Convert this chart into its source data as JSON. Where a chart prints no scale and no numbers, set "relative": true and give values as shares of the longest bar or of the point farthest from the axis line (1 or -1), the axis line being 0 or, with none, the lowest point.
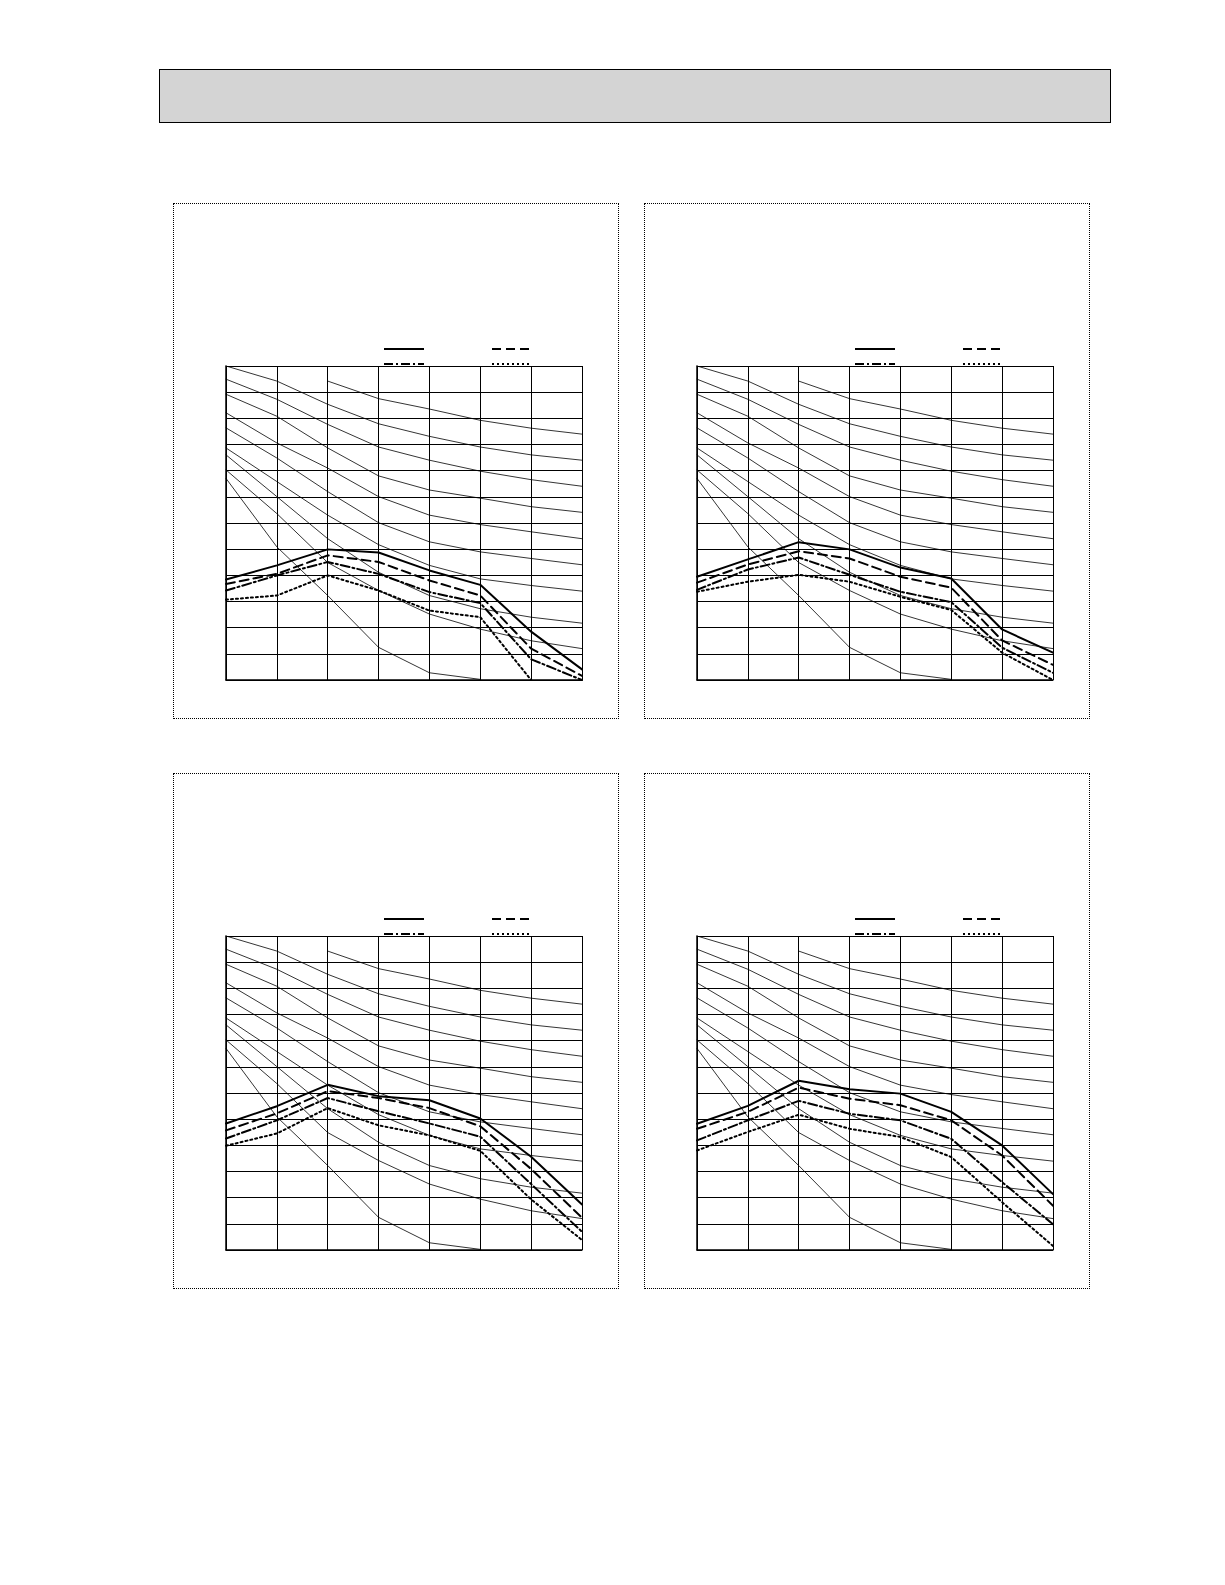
{
  "chart_data": [
    {
      "type": "line",
      "relative": true,
      "grid": true,
      "categories": [
        null,
        null,
        null,
        null,
        null,
        null,
        null,
        null
      ],
      "series": [
        {
          "color": "#000000",
          "line_style": "solid",
          "values": [
            0.32,
            0.365,
            0.416,
            0.406,
            0.349,
            0.303,
            0.154,
            0.034
          ]
        },
        {
          "color": "#000000",
          "line_style": "dashed",
          "values": [
            0.306,
            0.338,
            0.397,
            0.376,
            0.317,
            0.269,
            0.1,
            0.013
          ]
        },
        {
          "color": "#000000",
          "line_style": "dashdot",
          "values": [
            0.285,
            0.333,
            0.376,
            0.338,
            0.28,
            0.245,
            0.066,
            0
          ]
        },
        {
          "color": "#000000",
          "line_style": "dotted",
          "values": [
            0.256,
            0.269,
            0.333,
            0.285,
            0.221,
            0.2,
            0,
            null
          ]
        },
        {
          "color": "#000000",
          "values": [
            null,
            null,
            0.952,
            0.896,
            0.863,
            0.827,
            0.802,
            0.783
          ]
        },
        {
          "color": "#000000",
          "values": [
            1.0,
            0.952,
            0.878,
            0.816,
            0.776,
            0.742,
            0.717,
            0.7
          ]
        },
        {
          "color": "#000000",
          "values": [
            0.958,
            0.894,
            0.814,
            0.742,
            0.7,
            0.665,
            0.638,
            0.617
          ]
        },
        {
          "color": "#000000",
          "values": [
            0.91,
            0.84,
            0.739,
            0.65,
            0.605,
            0.579,
            0.552,
            0.534
          ]
        },
        {
          "color": "#000000",
          "values": [
            0.851,
            0.755,
            0.675,
            0.584,
            0.525,
            0.495,
            0.472,
            0.45
          ]
        },
        {
          "color": "#000000",
          "values": [
            0.803,
            0.707,
            0.6,
            0.501,
            0.44,
            0.408,
            0.387,
            0.367
          ]
        },
        {
          "color": "#000000",
          "values": [
            0.739,
            0.632,
            0.525,
            0.431,
            0.365,
            0.322,
            0.301,
            0.283
          ]
        },
        {
          "color": "#000000",
          "values": [
            0.717,
            0.584,
            0.45,
            0.343,
            0.269,
            0.227,
            0.2,
            0.181
          ]
        },
        {
          "color": "#000000",
          "values": [
            0.669,
            0.53,
            0.374,
            0.285,
            0.21,
            0.162,
            0.125,
            0.1
          ]
        },
        {
          "color": "#000000",
          "values": [
            0.642,
            0.424,
            0.269,
            0.104,
            0.023,
            0.002,
            null,
            null
          ]
        }
      ]
    },
    {
      "type": "line",
      "relative": true,
      "grid": true,
      "categories": [
        null,
        null,
        null,
        null,
        null,
        null,
        null,
        null
      ],
      "series": [
        {
          "color": "#000000",
          "line_style": "solid",
          "values": [
            0.329,
            0.384,
            0.439,
            0.416,
            0.358,
            0.323,
            0.161,
            0.087
          ]
        },
        {
          "color": "#000000",
          "line_style": "dashed",
          "values": [
            0.31,
            0.368,
            0.41,
            0.387,
            0.329,
            0.294,
            0.126,
            0.048
          ]
        },
        {
          "color": "#000000",
          "line_style": "dashdot",
          "values": [
            0.287,
            0.352,
            0.39,
            0.335,
            0.281,
            0.248,
            0.103,
            0.023
          ]
        },
        {
          "color": "#000000",
          "line_style": "dotted",
          "values": [
            0.281,
            0.313,
            0.335,
            0.313,
            0.265,
            0.223,
            0.087,
            0
          ]
        },
        {
          "color": "#000000",
          "values": [
            null,
            null,
            0.952,
            0.896,
            0.863,
            0.827,
            0.802,
            0.783
          ]
        },
        {
          "color": "#000000",
          "values": [
            1.0,
            0.952,
            0.878,
            0.816,
            0.776,
            0.742,
            0.717,
            0.7
          ]
        },
        {
          "color": "#000000",
          "values": [
            0.958,
            0.894,
            0.814,
            0.742,
            0.7,
            0.665,
            0.638,
            0.617
          ]
        },
        {
          "color": "#000000",
          "values": [
            0.91,
            0.84,
            0.739,
            0.65,
            0.605,
            0.579,
            0.552,
            0.534
          ]
        },
        {
          "color": "#000000",
          "values": [
            0.851,
            0.755,
            0.675,
            0.584,
            0.525,
            0.495,
            0.472,
            0.45
          ]
        },
        {
          "color": "#000000",
          "values": [
            0.803,
            0.707,
            0.6,
            0.501,
            0.44,
            0.408,
            0.387,
            0.367
          ]
        },
        {
          "color": "#000000",
          "values": [
            0.739,
            0.632,
            0.525,
            0.431,
            0.365,
            0.322,
            0.301,
            0.283
          ]
        },
        {
          "color": "#000000",
          "values": [
            0.717,
            0.584,
            0.45,
            0.343,
            0.269,
            0.227,
            0.2,
            0.181
          ]
        },
        {
          "color": "#000000",
          "values": [
            0.669,
            0.53,
            0.374,
            0.285,
            0.21,
            0.162,
            0.125,
            0.1
          ]
        },
        {
          "color": "#000000",
          "values": [
            0.642,
            0.424,
            0.269,
            0.104,
            0.023,
            0.002,
            null,
            null
          ]
        }
      ]
    },
    {
      "type": "line",
      "relative": true,
      "grid": true,
      "categories": [
        null,
        null,
        null,
        null,
        null,
        null,
        null,
        null
      ],
      "series": [
        {
          "color": "#000000",
          "line_style": "solid",
          "values": [
            0.403,
            0.458,
            0.526,
            0.49,
            0.477,
            0.419,
            0.297,
            0.145
          ]
        },
        {
          "color": "#000000",
          "line_style": "dashed",
          "values": [
            0.381,
            0.435,
            0.506,
            0.484,
            0.452,
            0.394,
            0.258,
            0.103
          ]
        },
        {
          "color": "#000000",
          "line_style": "dashdot",
          "values": [
            0.355,
            0.413,
            0.484,
            0.442,
            0.403,
            0.361,
            0.21,
            0.058
          ]
        },
        {
          "color": "#000000",
          "line_style": "dotted",
          "values": [
            0.332,
            0.371,
            0.452,
            0.397,
            0.365,
            0.316,
            0.161,
            0.032
          ]
        },
        {
          "color": "#000000",
          "values": [
            null,
            null,
            0.952,
            0.896,
            0.863,
            0.827,
            0.802,
            0.783
          ]
        },
        {
          "color": "#000000",
          "values": [
            1.0,
            0.952,
            0.878,
            0.816,
            0.776,
            0.742,
            0.717,
            0.7
          ]
        },
        {
          "color": "#000000",
          "values": [
            0.958,
            0.894,
            0.814,
            0.742,
            0.7,
            0.665,
            0.638,
            0.617
          ]
        },
        {
          "color": "#000000",
          "values": [
            0.91,
            0.84,
            0.739,
            0.65,
            0.605,
            0.579,
            0.552,
            0.534
          ]
        },
        {
          "color": "#000000",
          "values": [
            0.851,
            0.755,
            0.675,
            0.584,
            0.525,
            0.495,
            0.472,
            0.45
          ]
        },
        {
          "color": "#000000",
          "values": [
            0.803,
            0.707,
            0.6,
            0.501,
            0.44,
            0.408,
            0.387,
            0.367
          ]
        },
        {
          "color": "#000000",
          "values": [
            0.739,
            0.632,
            0.525,
            0.431,
            0.365,
            0.322,
            0.301,
            0.283
          ]
        },
        {
          "color": "#000000",
          "values": [
            0.717,
            0.584,
            0.45,
            0.343,
            0.269,
            0.227,
            0.2,
            0.181
          ]
        },
        {
          "color": "#000000",
          "values": [
            0.669,
            0.53,
            0.374,
            0.285,
            0.21,
            0.162,
            0.125,
            0.1
          ]
        },
        {
          "color": "#000000",
          "values": [
            0.642,
            0.424,
            0.269,
            0.104,
            0.023,
            0.002,
            null,
            null
          ]
        }
      ]
    },
    {
      "type": "line",
      "relative": true,
      "grid": true,
      "categories": [
        null,
        null,
        null,
        null,
        null,
        null,
        null,
        null
      ],
      "series": [
        {
          "color": "#000000",
          "line_style": "solid",
          "values": [
            0.402,
            0.459,
            0.539,
            0.512,
            0.498,
            0.44,
            0.333,
            0.178
          ]
        },
        {
          "color": "#000000",
          "line_style": "dashed",
          "values": [
            0.386,
            0.44,
            0.517,
            0.482,
            0.461,
            0.413,
            0.301,
            0.141
          ]
        },
        {
          "color": "#000000",
          "line_style": "dashdot",
          "values": [
            0.349,
            0.413,
            0.475,
            0.434,
            0.413,
            0.354,
            0.216,
            0.082
          ]
        },
        {
          "color": "#000000",
          "line_style": "dotted",
          "values": [
            0.317,
            0.376,
            0.431,
            0.386,
            0.36,
            0.296,
            0.152,
            0.013
          ]
        },
        {
          "color": "#000000",
          "values": [
            null,
            null,
            0.952,
            0.896,
            0.863,
            0.827,
            0.802,
            0.783
          ]
        },
        {
          "color": "#000000",
          "values": [
            1.0,
            0.952,
            0.878,
            0.816,
            0.776,
            0.742,
            0.717,
            0.7
          ]
        },
        {
          "color": "#000000",
          "values": [
            0.958,
            0.894,
            0.814,
            0.742,
            0.7,
            0.665,
            0.638,
            0.617
          ]
        },
        {
          "color": "#000000",
          "values": [
            0.91,
            0.84,
            0.739,
            0.65,
            0.605,
            0.579,
            0.552,
            0.534
          ]
        },
        {
          "color": "#000000",
          "values": [
            0.851,
            0.755,
            0.675,
            0.584,
            0.525,
            0.495,
            0.472,
            0.45
          ]
        },
        {
          "color": "#000000",
          "values": [
            0.803,
            0.707,
            0.6,
            0.501,
            0.44,
            0.408,
            0.387,
            0.367
          ]
        },
        {
          "color": "#000000",
          "values": [
            0.739,
            0.632,
            0.525,
            0.431,
            0.365,
            0.322,
            0.301,
            0.283
          ]
        },
        {
          "color": "#000000",
          "values": [
            0.717,
            0.584,
            0.45,
            0.343,
            0.269,
            0.227,
            0.2,
            0.181
          ]
        },
        {
          "color": "#000000",
          "values": [
            0.669,
            0.53,
            0.374,
            0.285,
            0.21,
            0.162,
            0.125,
            0.1
          ]
        },
        {
          "color": "#000000",
          "values": [
            0.642,
            0.424,
            0.269,
            0.104,
            0.023,
            0.002,
            null,
            null
          ]
        }
      ]
    }
  ]
}
